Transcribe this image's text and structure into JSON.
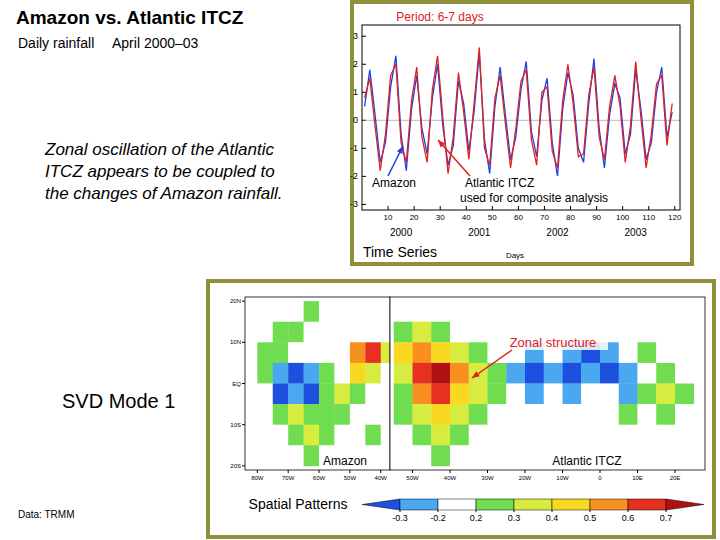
{
  "title": "Amazon vs. Atlantic ITCZ",
  "subtitle": [
    "Daily rainfall",
    "April 2000–03"
  ],
  "note": "Zonal oscillation of the Atlantic ITCZ appears to be coupled to the changes of Amazon rainfall.",
  "svd_label": "SVD Mode 1",
  "data_source": "Data: TRMM",
  "panel_label": "Spatial Patterns",
  "chart_data": [
    {
      "type": "line",
      "title": "Period: 6-7 days",
      "caption": "Time Series",
      "xlabel": "Days",
      "annotations": [
        "Amazon",
        "Atlantic ITCZ",
        "used for composite analysis"
      ],
      "year_labels": [
        "2000",
        "2001",
        "2002",
        "2003"
      ],
      "x": [
        1,
        3,
        5,
        7,
        9,
        11,
        13,
        15,
        17,
        19,
        21,
        23,
        25,
        27,
        29,
        31,
        33,
        35,
        37,
        39,
        41,
        43,
        45,
        47,
        49,
        51,
        53,
        55,
        57,
        59,
        61,
        63,
        65,
        67,
        69,
        71,
        73,
        75,
        77,
        79,
        81,
        83,
        85,
        87,
        89,
        91,
        93,
        95,
        97,
        99,
        101,
        103,
        105,
        107,
        109,
        111,
        113,
        115,
        117,
        119
      ],
      "series": [
        {
          "name": "Amazon",
          "color": "#2040e0",
          "values": [
            0.5,
            1.8,
            0.2,
            -1.5,
            -0.8,
            1.2,
            2.3,
            -0.5,
            -1.8,
            0.4,
            1.6,
            -0.3,
            -1.2,
            0.8,
            2.0,
            -0.2,
            -1.6,
            -0.9,
            1.4,
            0.6,
            -1.1,
            0.3,
            2.4,
            -0.7,
            -1.9,
            0.5,
            1.9,
            0.2,
            -1.4,
            -0.6,
            1.1,
            2.1,
            -0.4,
            -1.3,
            0.7,
            1.5,
            -0.8,
            -2.0,
            0.4,
            1.7,
            0.9,
            -1.0,
            -1.5,
            0.6,
            2.2,
            -0.3,
            -1.7,
            0.2,
            1.3,
            0.8,
            -1.2,
            -0.5,
            1.8,
            0.4,
            -1.4,
            -0.8,
            1.0,
            1.9,
            -0.6,
            0.3
          ]
        },
        {
          "name": "Atlantic ITCZ",
          "color": "#e02020",
          "values": [
            0.8,
            1.5,
            -0.2,
            -1.8,
            -0.5,
            1.6,
            2.0,
            -0.8,
            -1.5,
            0.7,
            1.9,
            -0.6,
            -1.5,
            1.1,
            2.3,
            0.1,
            -1.9,
            -0.6,
            1.7,
            0.3,
            -1.4,
            0.6,
            2.6,
            -1.0,
            -1.6,
            0.8,
            1.6,
            -0.1,
            -1.7,
            -0.3,
            1.4,
            1.8,
            -0.7,
            -1.6,
            1.0,
            1.2,
            -1.1,
            -1.7,
            0.7,
            2.0,
            0.6,
            -1.3,
            -1.2,
            0.9,
            1.9,
            -0.6,
            -1.4,
            0.5,
            1.6,
            0.5,
            -1.5,
            -0.2,
            2.1,
            0.1,
            -1.7,
            -0.5,
            1.3,
            1.6,
            -0.9,
            0.6
          ]
        }
      ],
      "xlim": [
        0,
        122
      ],
      "xticks": [
        10,
        20,
        30,
        40,
        50,
        60,
        70,
        80,
        90,
        100,
        110,
        120
      ],
      "ylim": [
        -3.2,
        3.4
      ],
      "yticks": [
        -3,
        -2,
        -1,
        0,
        1,
        2,
        3
      ]
    },
    {
      "type": "heatmap",
      "label": "Amazon",
      "lon": [
        -82.5,
        -77.5,
        -72.5,
        -67.5,
        -62.5,
        -57.5,
        -52.5,
        -47.5,
        -42.5,
        -37.5
      ],
      "lat": [
        17.5,
        12.5,
        7.5,
        2.5,
        -2.5,
        -7.5,
        -12.5,
        -17.5
      ],
      "values": [
        [
          0,
          0,
          0,
          0,
          0.2,
          0,
          0,
          0,
          0,
          0
        ],
        [
          0,
          0,
          0.2,
          0.2,
          0,
          0,
          0,
          0,
          0,
          0
        ],
        [
          0,
          0.2,
          0.2,
          0,
          0,
          0,
          0,
          0.5,
          0.6,
          0.3
        ],
        [
          0,
          0.2,
          -0.25,
          -0.35,
          -0.25,
          0.2,
          0,
          0.4,
          0.3,
          0
        ],
        [
          0,
          0,
          -0.35,
          -0.25,
          -0.35,
          0.2,
          0.3,
          0.2,
          0,
          0
        ],
        [
          0,
          0,
          0.2,
          0.3,
          0.2,
          0.2,
          0.2,
          0,
          0,
          0
        ],
        [
          0,
          0,
          0,
          0.2,
          0.3,
          0.2,
          0,
          0,
          0.2,
          0
        ],
        [
          0,
          0,
          0,
          0,
          0.2,
          0,
          0,
          0,
          0,
          0
        ]
      ],
      "xlim": [
        -84,
        -37
      ],
      "ylim": [
        -21,
        21
      ],
      "xticks": [
        {
          "value": -80,
          "label": "80W"
        },
        {
          "value": -70,
          "label": "70W"
        },
        {
          "value": -60,
          "label": "60W"
        },
        {
          "value": -50,
          "label": "50W"
        },
        {
          "value": -40,
          "label": "40W"
        }
      ],
      "yticks": [
        {
          "value": 20,
          "label": "20N"
        },
        {
          "value": 10,
          "label": "10N"
        },
        {
          "value": 0,
          "label": "EQ"
        },
        {
          "value": -10,
          "label": "10S"
        },
        {
          "value": -20,
          "label": "20S"
        }
      ]
    },
    {
      "type": "heatmap",
      "label": "Atlantic ITCZ",
      "annotations": [
        "Zonal structure"
      ],
      "lon": [
        -52.5,
        -47.5,
        -42.5,
        -37.5,
        -32.5,
        -27.5,
        -22.5,
        -17.5,
        -12.5,
        -7.5,
        -2.5,
        2.5,
        7.5,
        12.5,
        17.5,
        22.5
      ],
      "lat": [
        17.5,
        12.5,
        7.5,
        2.5,
        -2.5,
        -7.5,
        -12.5,
        -17.5
      ],
      "values": [
        [
          0,
          0,
          0,
          0,
          0,
          0,
          0,
          0,
          0,
          0,
          0,
          0,
          0,
          0,
          0,
          0
        ],
        [
          0.2,
          0.3,
          0.2,
          0,
          0,
          0,
          0,
          0,
          0,
          0,
          0,
          0,
          0,
          0,
          0,
          0
        ],
        [
          0.4,
          0.5,
          0.4,
          0.3,
          0.2,
          0,
          0,
          -0.25,
          0,
          -0.25,
          -0.35,
          -0.25,
          0,
          0.2,
          0,
          0
        ],
        [
          0.3,
          0.6,
          0.7,
          0.5,
          0.3,
          0.2,
          -0.25,
          -0.35,
          -0.25,
          -0.35,
          -0.25,
          -0.35,
          -0.25,
          0,
          0.2,
          0
        ],
        [
          0.2,
          0.5,
          0.6,
          0.4,
          0.3,
          0.2,
          0,
          -0.25,
          0,
          -0.25,
          0,
          0,
          -0.25,
          0.2,
          0.3,
          0.2
        ],
        [
          0.2,
          0.3,
          0.4,
          0.3,
          0.2,
          0,
          0,
          0,
          0,
          0,
          0,
          0,
          0.2,
          0,
          0.2,
          0
        ],
        [
          0,
          0.2,
          0.3,
          0.2,
          0,
          0,
          0,
          0,
          0,
          0,
          0,
          0,
          0,
          0,
          0,
          0
        ],
        [
          0,
          0,
          0.2,
          0,
          0,
          0,
          0,
          0,
          0,
          0,
          0,
          0,
          0,
          0,
          0,
          0
        ]
      ],
      "xlim": [
        -56,
        28
      ],
      "ylim": [
        -21,
        21
      ],
      "xticks": [
        {
          "value": -50,
          "label": "50W"
        },
        {
          "value": -40,
          "label": "40W"
        },
        {
          "value": -30,
          "label": "30W"
        },
        {
          "value": -20,
          "label": "20W"
        },
        {
          "value": -10,
          "label": "10W"
        },
        0,
        {
          "value": 10,
          "label": "10E"
        },
        {
          "value": 20,
          "label": "20E"
        }
      ],
      "colorbar": {
        "ticks": [
          -0.3,
          -0.2,
          0.2,
          0.3,
          0.4,
          0.5,
          0.6,
          0.7
        ],
        "colors": [
          "#1e50e0",
          "#4aa8f0",
          "#ffffff",
          "#70dc50",
          "#d8ec40",
          "#f8d820",
          "#f89020",
          "#e83020",
          "#b01010"
        ]
      }
    }
  ]
}
